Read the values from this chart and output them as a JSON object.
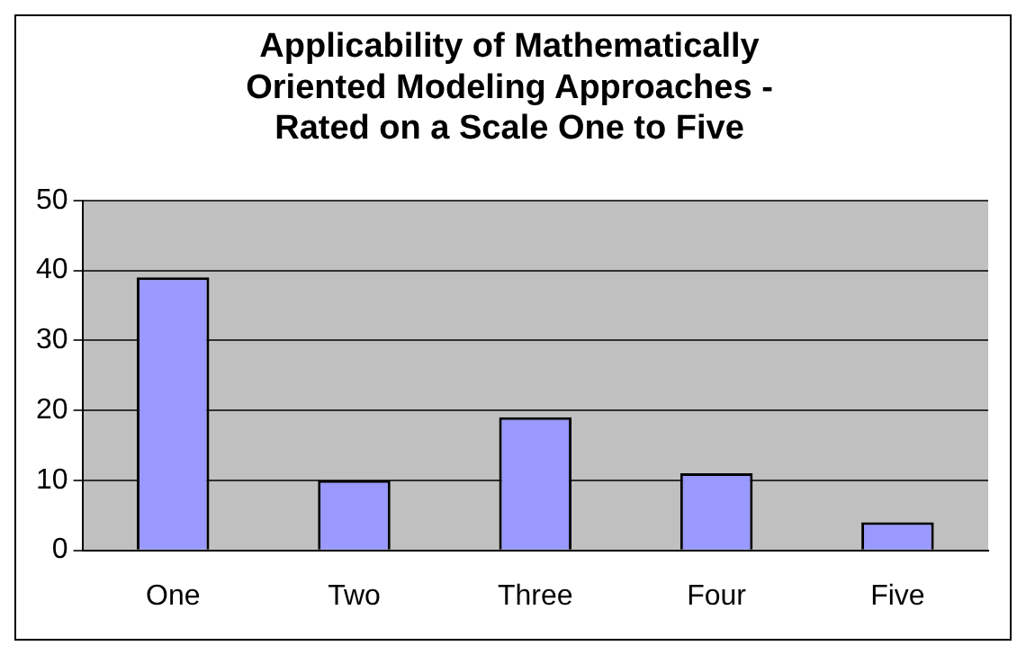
{
  "chart_data": {
    "type": "bar",
    "title": "Applicability of Mathematically\nOriented Modeling Approaches -\nRated on a Scale One to Five",
    "categories": [
      "One",
      "Two",
      "Three",
      "Four",
      "Five"
    ],
    "values": [
      39,
      10,
      19,
      11,
      4
    ],
    "color": "#9999ff",
    "ylim": [
      0,
      50
    ],
    "yticks": [
      0,
      10,
      20,
      30,
      40,
      50
    ],
    "grid": "y",
    "legend": false
  }
}
